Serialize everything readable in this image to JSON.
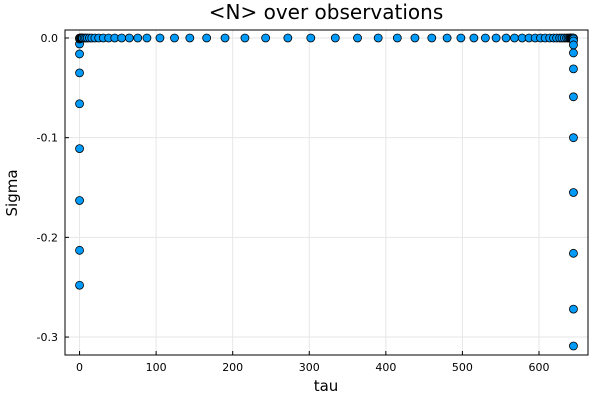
{
  "chart_data": {
    "type": "scatter",
    "title": "<N> over observations",
    "xlabel": "tau",
    "ylabel": "Sigma",
    "xlim": [
      -19,
      664
    ],
    "ylim": [
      -0.318,
      0.008
    ],
    "xticks": [
      0,
      100,
      200,
      300,
      400,
      500,
      600
    ],
    "xtick_labels": [
      "0",
      "100",
      "200",
      "300",
      "400",
      "500",
      "600"
    ],
    "yticks": [
      0.0,
      -0.1,
      -0.2,
      -0.3
    ],
    "ytick_labels": [
      "0.0",
      "-0.1",
      "-0.2",
      "-0.3"
    ],
    "grid": true,
    "legend": "none",
    "marker_color": "#009af9",
    "series": [
      {
        "points": [
          [
            0,
            -0.248
          ],
          [
            0,
            -0.213
          ],
          [
            0,
            -0.163
          ],
          [
            0,
            -0.111
          ],
          [
            0,
            -0.066
          ],
          [
            0,
            -0.035
          ],
          [
            0,
            -0.016
          ],
          [
            0,
            -0.006
          ],
          [
            0,
            -0.001
          ],
          [
            0,
            0.0
          ],
          [
            1,
            0.0
          ],
          [
            2,
            0.0
          ],
          [
            3,
            0.0
          ],
          [
            4,
            0.0
          ],
          [
            6,
            0.0
          ],
          [
            8,
            0.0
          ],
          [
            10,
            0.0
          ],
          [
            13,
            0.0
          ],
          [
            16,
            0.0
          ],
          [
            20,
            0.0
          ],
          [
            25,
            0.0
          ],
          [
            31,
            0.0
          ],
          [
            38,
            0.0
          ],
          [
            46,
            0.0
          ],
          [
            55,
            0.0
          ],
          [
            65,
            0.0
          ],
          [
            76,
            0.0
          ],
          [
            88,
            0.0
          ],
          [
            105,
            0.0
          ],
          [
            124,
            0.0
          ],
          [
            144,
            0.0
          ],
          [
            166,
            0.0
          ],
          [
            190,
            0.0
          ],
          [
            216,
            0.0
          ],
          [
            243,
            0.0
          ],
          [
            272,
            0.0
          ],
          [
            302,
            0.0
          ],
          [
            334,
            0.0
          ],
          [
            363,
            0.0
          ],
          [
            390,
            0.0
          ],
          [
            415,
            0.0
          ],
          [
            438,
            0.0
          ],
          [
            460,
            0.0
          ],
          [
            480,
            0.0
          ],
          [
            498,
            0.0
          ],
          [
            515,
            0.0
          ],
          [
            530,
            0.0
          ],
          [
            544,
            0.0
          ],
          [
            557,
            0.0
          ],
          [
            568,
            0.0
          ],
          [
            578,
            0.0
          ],
          [
            587,
            0.0
          ],
          [
            595,
            0.0
          ],
          [
            602,
            0.0
          ],
          [
            608,
            0.0
          ],
          [
            614,
            0.0
          ],
          [
            619,
            0.0
          ],
          [
            623,
            0.0
          ],
          [
            627,
            0.0
          ],
          [
            630,
            0.0
          ],
          [
            633,
            0.0
          ],
          [
            636,
            0.0
          ],
          [
            638,
            0.0
          ],
          [
            640,
            0.0
          ],
          [
            641,
            0.0
          ],
          [
            642,
            0.0
          ],
          [
            643,
            0.0
          ],
          [
            644,
            0.0
          ],
          [
            645,
            0.0
          ],
          [
            645,
            -0.001
          ],
          [
            645,
            -0.003
          ],
          [
            645,
            -0.007
          ],
          [
            645,
            -0.015
          ],
          [
            645,
            -0.031
          ],
          [
            645,
            -0.059
          ],
          [
            645,
            -0.1
          ],
          [
            645,
            -0.155
          ],
          [
            645,
            -0.216
          ],
          [
            645,
            -0.272
          ],
          [
            645,
            -0.309
          ]
        ]
      }
    ]
  }
}
